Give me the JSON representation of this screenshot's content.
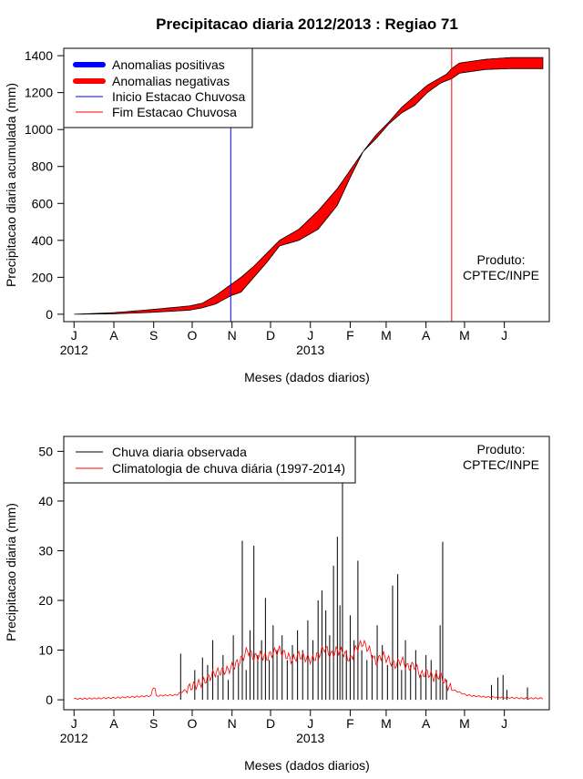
{
  "colors": {
    "positive": "#0000ff",
    "negative": "#ff0000",
    "start_line": "#0000ff",
    "end_line": "#ff0000",
    "observed": "#000000",
    "climatology": "#ff0000"
  },
  "chart_data": [
    {
      "type": "area",
      "title": "Precipitacao diaria 2012/2013 : Regiao 71",
      "xlabel": "Meses (dados diarios)",
      "ylabel": "Precipitacao diaria acumulada (mm)",
      "xlim_days": [
        -8,
        370
      ],
      "ylim": [
        -40,
        1440
      ],
      "x_ticks": [
        {
          "label": "J",
          "day": 0
        },
        {
          "label": "A",
          "day": 31
        },
        {
          "label": "S",
          "day": 62
        },
        {
          "label": "O",
          "day": 92
        },
        {
          "label": "N",
          "day": 123
        },
        {
          "label": "D",
          "day": 153
        },
        {
          "label": "J",
          "day": 184
        },
        {
          "label": "F",
          "day": 215
        },
        {
          "label": "M",
          "day": 243
        },
        {
          "label": "A",
          "day": 274
        },
        {
          "label": "M",
          "day": 304
        },
        {
          "label": "J",
          "day": 335
        }
      ],
      "year_labels": [
        {
          "label": "2012",
          "day": 0
        },
        {
          "label": "2013",
          "day": 184
        }
      ],
      "y_ticks": [
        0,
        200,
        400,
        600,
        800,
        1000,
        1200,
        1400
      ],
      "rainy_season_start_day": 122,
      "rainy_season_end_day": 294,
      "observed_cumulative": {
        "days": [
          0,
          30,
          60,
          90,
          100,
          110,
          122,
          130,
          140,
          150,
          160,
          175,
          190,
          205,
          215,
          225,
          235,
          245,
          255,
          265,
          275,
          285,
          290,
          294,
          300,
          320,
          340,
          365
        ],
        "values": [
          0,
          2,
          10,
          22,
          35,
          55,
          100,
          120,
          200,
          280,
          370,
          400,
          460,
          590,
          740,
          880,
          950,
          1030,
          1090,
          1130,
          1200,
          1250,
          1265,
          1275,
          1305,
          1325,
          1330,
          1330
        ]
      },
      "climatology_cumulative": {
        "days": [
          0,
          30,
          60,
          90,
          100,
          110,
          122,
          130,
          140,
          150,
          160,
          175,
          190,
          205,
          215,
          225,
          235,
          245,
          255,
          265,
          275,
          285,
          290,
          294,
          300,
          320,
          340,
          365
        ],
        "values": [
          0,
          8,
          25,
          45,
          60,
          100,
          160,
          200,
          260,
          330,
          400,
          460,
          560,
          680,
          780,
          880,
          970,
          1040,
          1120,
          1180,
          1240,
          1280,
          1300,
          1330,
          1360,
          1380,
          1390,
          1390
        ]
      },
      "legend": {
        "position": "top-left",
        "items": [
          {
            "label": "Anomalias positivas",
            "style": "thick",
            "color": "#0000ff"
          },
          {
            "label": "Anomalias negativas",
            "style": "thick",
            "color": "#ff0000"
          },
          {
            "label": "Inicio Estacao Chuvosa",
            "style": "thin",
            "color": "#0000ff"
          },
          {
            "label": "Fim Estacao Chuvosa",
            "style": "thin",
            "color": "#ff0000"
          }
        ]
      },
      "annotation": [
        "Produto:",
        "CPTEC/INPE"
      ]
    },
    {
      "type": "bar",
      "xlabel": "Meses (dados diarios)",
      "ylabel": "Precipitacao diaria (mm)",
      "xlim_days": [
        -8,
        370
      ],
      "ylim": [
        -2,
        53
      ],
      "x_ticks": [
        {
          "label": "J",
          "day": 0
        },
        {
          "label": "A",
          "day": 31
        },
        {
          "label": "S",
          "day": 62
        },
        {
          "label": "O",
          "day": 92
        },
        {
          "label": "N",
          "day": 123
        },
        {
          "label": "D",
          "day": 153
        },
        {
          "label": "J",
          "day": 184
        },
        {
          "label": "F",
          "day": 215
        },
        {
          "label": "M",
          "day": 243
        },
        {
          "label": "A",
          "day": 274
        },
        {
          "label": "M",
          "day": 304
        },
        {
          "label": "J",
          "day": 335
        }
      ],
      "year_labels": [
        {
          "label": "2012",
          "day": 0
        },
        {
          "label": "2013",
          "day": 184
        }
      ],
      "y_ticks": [
        0,
        10,
        20,
        30,
        40,
        50
      ],
      "observed_daily": [
        {
          "day": 83,
          "value": 9.3
        },
        {
          "day": 94,
          "value": 6
        },
        {
          "day": 100,
          "value": 8.5
        },
        {
          "day": 104,
          "value": 7
        },
        {
          "day": 108,
          "value": 12
        },
        {
          "day": 112,
          "value": 5
        },
        {
          "day": 116,
          "value": 9
        },
        {
          "day": 120,
          "value": 4
        },
        {
          "day": 124,
          "value": 13
        },
        {
          "day": 128,
          "value": 7
        },
        {
          "day": 131,
          "value": 32
        },
        {
          "day": 134,
          "value": 6
        },
        {
          "day": 137,
          "value": 14
        },
        {
          "day": 140,
          "value": 31
        },
        {
          "day": 143,
          "value": 9
        },
        {
          "day": 146,
          "value": 12
        },
        {
          "day": 149,
          "value": 20.5
        },
        {
          "day": 152,
          "value": 8
        },
        {
          "day": 155,
          "value": 15
        },
        {
          "day": 158,
          "value": 10
        },
        {
          "day": 162,
          "value": 13
        },
        {
          "day": 166,
          "value": 8
        },
        {
          "day": 170,
          "value": 11
        },
        {
          "day": 174,
          "value": 14
        },
        {
          "day": 178,
          "value": 10
        },
        {
          "day": 182,
          "value": 16
        },
        {
          "day": 186,
          "value": 12
        },
        {
          "day": 190,
          "value": 20
        },
        {
          "day": 193,
          "value": 22
        },
        {
          "day": 196,
          "value": 18
        },
        {
          "day": 199,
          "value": 13
        },
        {
          "day": 202,
          "value": 27
        },
        {
          "day": 205,
          "value": 32.8
        },
        {
          "day": 207,
          "value": 19
        },
        {
          "day": 209,
          "value": 44
        },
        {
          "day": 212,
          "value": 10
        },
        {
          "day": 215,
          "value": 17
        },
        {
          "day": 218,
          "value": 12
        },
        {
          "day": 221,
          "value": 28
        },
        {
          "day": 224,
          "value": 10
        },
        {
          "day": 228,
          "value": 8
        },
        {
          "day": 232,
          "value": 9
        },
        {
          "day": 236,
          "value": 15
        },
        {
          "day": 240,
          "value": 11
        },
        {
          "day": 244,
          "value": 7
        },
        {
          "day": 248,
          "value": 23
        },
        {
          "day": 252,
          "value": 25.3
        },
        {
          "day": 255,
          "value": 6
        },
        {
          "day": 258,
          "value": 12
        },
        {
          "day": 262,
          "value": 7
        },
        {
          "day": 266,
          "value": 10
        },
        {
          "day": 270,
          "value": 5
        },
        {
          "day": 274,
          "value": 9
        },
        {
          "day": 278,
          "value": 8
        },
        {
          "day": 282,
          "value": 6
        },
        {
          "day": 285,
          "value": 15
        },
        {
          "day": 287,
          "value": 31.8
        },
        {
          "day": 290,
          "value": 4
        },
        {
          "day": 325,
          "value": 3
        },
        {
          "day": 330,
          "value": 4.5
        },
        {
          "day": 334,
          "value": 5
        },
        {
          "day": 337,
          "value": 2
        },
        {
          "day": 353,
          "value": 2.5
        }
      ],
      "climatology_daily": {
        "days": [
          0,
          20,
          40,
          60,
          62,
          64,
          80,
          90,
          100,
          110,
          120,
          125,
          130,
          135,
          140,
          145,
          150,
          155,
          160,
          165,
          170,
          175,
          180,
          185,
          190,
          195,
          200,
          205,
          210,
          215,
          220,
          225,
          230,
          235,
          240,
          245,
          250,
          255,
          260,
          265,
          270,
          275,
          280,
          285,
          290,
          295,
          300,
          305,
          310,
          320,
          330,
          340,
          350,
          365
        ],
        "values": [
          0.2,
          0.3,
          0.5,
          0.8,
          3.3,
          0.8,
          1.0,
          2.5,
          3.5,
          5.5,
          6.0,
          7.0,
          8.0,
          10.0,
          8.5,
          9.0,
          8.5,
          9.5,
          10.0,
          9.0,
          8.0,
          9.0,
          8.5,
          8.0,
          9.0,
          10.5,
          9.0,
          10.0,
          9.5,
          8.0,
          10.5,
          11.5,
          10.0,
          7.5,
          9.0,
          8.0,
          7.0,
          8.0,
          6.5,
          7.0,
          5.0,
          5.5,
          4.5,
          5.0,
          3.0,
          2.0,
          1.5,
          1.0,
          0.8,
          0.6,
          0.5,
          0.4,
          0.3,
          0.3
        ]
      },
      "legend": {
        "position": "top-left",
        "items": [
          {
            "label": "Chuva diaria observada",
            "style": "thin",
            "color": "#000000"
          },
          {
            "label": "Climatologia de chuva diária (1997-2014)",
            "style": "thin",
            "color": "#ff0000"
          }
        ]
      },
      "annotation": [
        "Produto:",
        "CPTEC/INPE"
      ]
    }
  ]
}
